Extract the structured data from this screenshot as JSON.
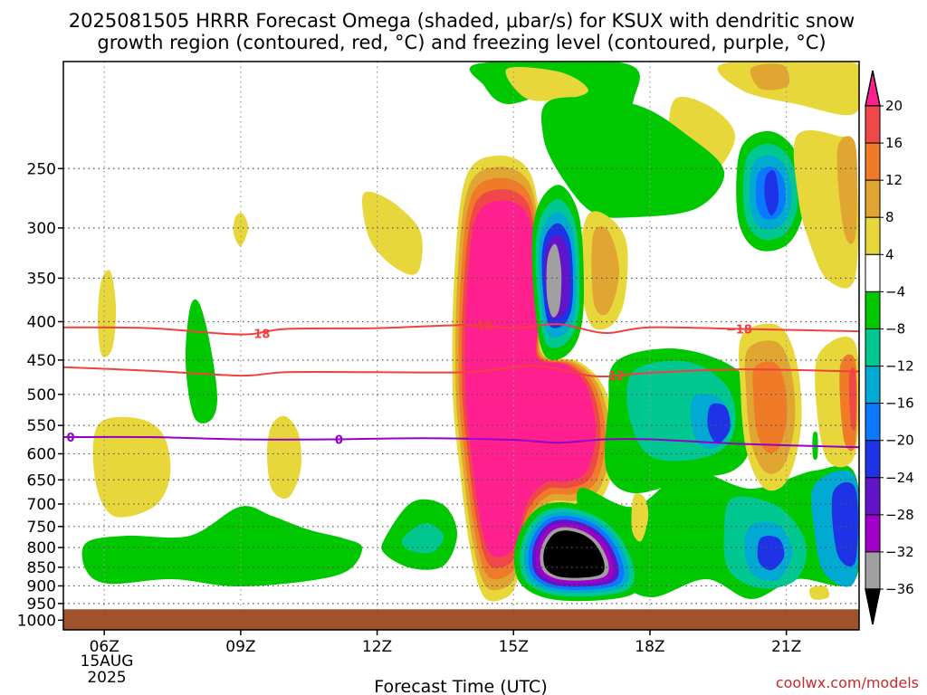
{
  "title_line1": "2025081505 HRRR Forecast Omega (shaded, μbar/s) for KSUX with dendritic snow",
  "title_line2": "growth region (contoured, red, °C) and freezing level (contoured, purple, °C)",
  "credit": "coolwx.com/models",
  "chart_data": {
    "type": "heatmap",
    "title": "2025081505 HRRR Forecast Omega (shaded, μbar/s) for KSUX with dendritic snow growth region (contoured, red, °C) and freezing level (contoured, purple, °C)",
    "xlabel": "Forecast Time (UTC)",
    "ylabel": "",
    "x_range_hours_utc": [
      5.1,
      22.6
    ],
    "y_range_hpa": [
      1030,
      180
    ],
    "y_scale": "log",
    "grid": true,
    "x_ticks": [
      {
        "hour": 6,
        "label": "06Z"
      },
      {
        "hour": 9,
        "label": "09Z"
      },
      {
        "hour": 12,
        "label": "12Z"
      },
      {
        "hour": 15,
        "label": "15Z"
      },
      {
        "hour": 18,
        "label": "18Z"
      },
      {
        "hour": 21,
        "label": "21Z"
      }
    ],
    "x_date_label": [
      "15AUG",
      "2025"
    ],
    "y_ticks": [
      250,
      300,
      350,
      400,
      450,
      500,
      550,
      600,
      650,
      700,
      750,
      800,
      850,
      900,
      950,
      1000
    ],
    "ground_level_hpa": 967,
    "colorbar": {
      "labels": [
        "20",
        "16",
        "12",
        "8",
        "4",
        "−4",
        "−8",
        "−12",
        "−16",
        "−20",
        "−24",
        "−28",
        "−32",
        "−36"
      ],
      "colors_top_to_bottom": [
        "#ff1f8f",
        "#f04848",
        "#ef7a28",
        "#e1a532",
        "#e8d73a",
        "#ffffff",
        "#00c800",
        "#00c890",
        "#00aad2",
        "#0a78ff",
        "#1e32e6",
        "#6414c8",
        "#a000c8",
        "#a0a0a0",
        "#000000"
      ]
    },
    "shading_regions": [
      {
        "label": "upward motion maximum",
        "omega_ubar_s": "< -36",
        "hours": [
          15.5,
          17.1
        ],
        "hpa": [
          750,
          950
        ]
      },
      {
        "label": "upward motion upper",
        "omega_ubar_s": "-32",
        "hours": [
          15.8,
          16.5
        ],
        "hpa": [
          330,
          460
        ]
      },
      {
        "label": "downward motion maximum",
        "omega_ubar_s": "> 20",
        "hours": [
          14.2,
          16.7
        ],
        "hpa": [
          290,
          900
        ]
      },
      {
        "label": "mid-level downward",
        "omega_ubar_s": "12",
        "hours": [
          20.9,
          21.4
        ],
        "hpa": [
          460,
          660
        ]
      },
      {
        "label": "low-level upward",
        "omega_ubar_s": "-8",
        "hours": [
          5.5,
          10.9
        ],
        "hpa": [
          760,
          940
        ]
      },
      {
        "label": "low-level upward east",
        "omega_ubar_s": "-20",
        "hours": [
          20.8,
          21.3
        ],
        "hpa": [
          800,
          900
        ]
      }
    ],
    "series": [
      {
        "name": "-18",
        "color": "#f04040",
        "label_hours": [
          9.2,
          14.1,
          19.8
        ],
        "x": [
          5.1,
          7,
          9,
          10,
          12,
          14,
          15,
          16,
          17,
          18,
          20,
          22.6
        ],
        "y_hpa": [
          407,
          408,
          416,
          409,
          408,
          404,
          408,
          403,
          414,
          407,
          409,
          412
        ]
      },
      {
        "name": "-12",
        "color": "#f04040",
        "label_hours": [
          17.0
        ],
        "x": [
          5.1,
          7,
          9,
          10,
          12,
          14,
          15.5,
          16.8,
          18,
          20,
          22.6
        ],
        "y_hpa": [
          460,
          465,
          472,
          467,
          467,
          467,
          458,
          473,
          468,
          463,
          466
        ]
      },
      {
        "name": "0",
        "color": "#9400c8",
        "label_hours": [
          5.1,
          11.0
        ],
        "x": [
          5.1,
          7,
          9,
          11,
          13,
          15,
          16,
          17,
          18,
          20,
          22.6
        ],
        "y_hpa": [
          570,
          570,
          574,
          574,
          572,
          575,
          580,
          574,
          574,
          582,
          588
        ]
      }
    ]
  }
}
